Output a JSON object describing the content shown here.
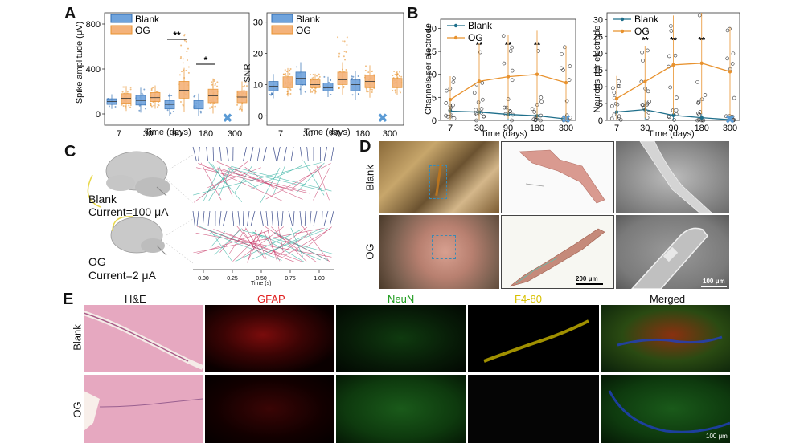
{
  "panels": {
    "A": "A",
    "B": "B",
    "C": "C",
    "D": "D",
    "E": "E"
  },
  "legend": {
    "blank": "Blank",
    "og": "OG"
  },
  "colors": {
    "blank": "#2f6db3",
    "blank_fill": "#6fa3dc",
    "og": "#e8922e",
    "og_fill": "#f4b27a",
    "x_mark": "#5b9bd5"
  },
  "panelA": {
    "ylabel_spike": "Spike amplitude (μV)",
    "ylabel_snr": "SNR",
    "xlabel": "Time (days)",
    "sig1": "**",
    "sig2": "*"
  },
  "panelB": {
    "ylabel_channels": "Channels per electrode",
    "ylabel_neurons": "Neurons per electrode",
    "xlabel": "Time (days)",
    "sig": "**"
  },
  "panelC": {
    "blank_label": "Blank",
    "blank_current": "Current=100 μA",
    "og_label": "OG",
    "og_current": "Current=2 μA",
    "ticks": [
      "0.00",
      "0.25",
      "0.50",
      "0.75",
      "1.00"
    ],
    "xlabel": "Time (s)"
  },
  "panelD": {
    "row_blank": "Blank",
    "row_og": "OG",
    "scale1": "200 μm",
    "scale2": "100 μm"
  },
  "panelE": {
    "cols": [
      "H&E",
      "GFAP",
      "NeuN",
      "F4-80",
      "Merged"
    ],
    "col_colors": [
      "#111111",
      "#e02020",
      "#1a9a1a",
      "#d8c000",
      "#111111"
    ],
    "row_blank": "Blank",
    "row_og": "OG",
    "scale": "100 μm"
  },
  "chart_data": [
    {
      "type": "box",
      "title": "",
      "xlabel": "Time (days)",
      "ylabel": "Spike amplitude (μV)",
      "categories": [
        "7",
        "30",
        "90",
        "180",
        "300"
      ],
      "ylim": [
        -100,
        900
      ],
      "yticks": [
        0,
        400,
        800
      ],
      "series": [
        {
          "name": "Blank",
          "medians": [
            110,
            120,
            85,
            90,
            null
          ],
          "q1": [
            85,
            80,
            45,
            45,
            null
          ],
          "q3": [
            135,
            165,
            120,
            120,
            null
          ]
        },
        {
          "name": "OG",
          "medians": [
            140,
            145,
            210,
            160,
            150
          ],
          "q1": [
            95,
            110,
            140,
            100,
            100
          ],
          "q3": [
            180,
            190,
            290,
            220,
            205
          ]
        }
      ],
      "missing_marker": {
        "category": "300",
        "series": "Blank"
      }
    },
    {
      "type": "box",
      "title": "",
      "xlabel": "Time (days)",
      "ylabel": "SNR",
      "categories": [
        "7",
        "30",
        "90",
        "180",
        "300"
      ],
      "ylim": [
        -3,
        33
      ],
      "yticks": [
        0,
        10,
        20,
        30
      ],
      "series": [
        {
          "name": "Blank",
          "medians": [
            9.5,
            12,
            9,
            10,
            null
          ],
          "q1": [
            8,
            10,
            8,
            8,
            null
          ],
          "q3": [
            11,
            14,
            10.5,
            11.5,
            null
          ]
        },
        {
          "name": "OG",
          "medians": [
            10.5,
            10,
            11.5,
            11,
            10.5
          ],
          "q1": [
            9,
            9,
            10,
            9,
            9
          ],
          "q3": [
            12.5,
            11.5,
            14,
            13,
            12
          ]
        }
      ],
      "missing_marker": {
        "category": "300",
        "series": "Blank"
      }
    },
    {
      "type": "line",
      "title": "",
      "xlabel": "Time (days)",
      "ylabel": "Channels per electrode",
      "categories": [
        "7",
        "30",
        "90",
        "180",
        "300"
      ],
      "ylim": [
        0,
        22
      ],
      "yticks": [
        0,
        5,
        10,
        15,
        20
      ],
      "series": [
        {
          "name": "Blank",
          "values": [
            2,
            1.8,
            1.3,
            1.0,
            0.3
          ]
        },
        {
          "name": "OG",
          "values": [
            4.5,
            8.5,
            9.5,
            10,
            8.2
          ]
        }
      ]
    },
    {
      "type": "line",
      "title": "",
      "xlabel": "Time (days)",
      "ylabel": "Neurons per electrode",
      "categories": [
        "7",
        "30",
        "90",
        "180",
        "300"
      ],
      "ylim": [
        0,
        32
      ],
      "yticks": [
        0,
        5,
        10,
        15,
        20,
        25,
        30
      ],
      "series": [
        {
          "name": "Blank",
          "values": [
            2.5,
            3.2,
            1.5,
            0.8,
            0.2
          ]
        },
        {
          "name": "OG",
          "values": [
            6.5,
            11.5,
            16.5,
            17,
            14.5
          ]
        }
      ]
    }
  ]
}
